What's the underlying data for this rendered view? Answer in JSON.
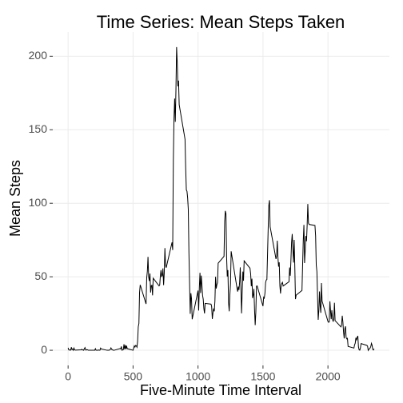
{
  "chart_data": {
    "type": "line",
    "title": "Time Series: Mean Steps Taken",
    "x_label": "Five-Minute Time Interval",
    "y_label": "Mean Steps",
    "color": "#000000",
    "grid": true,
    "xlim": [
      -118,
      2473
    ],
    "xticks": [
      0,
      500,
      1000,
      1500,
      2000
    ],
    "ylim": [
      -10.3,
      216.5
    ],
    "yticks": [
      0,
      50,
      100,
      150,
      200
    ],
    "x": [
      0,
      5,
      10,
      15,
      20,
      25,
      30,
      35,
      40,
      45,
      50,
      55,
      100,
      105,
      110,
      115,
      120,
      125,
      130,
      135,
      140,
      145,
      150,
      155,
      200,
      205,
      210,
      215,
      220,
      225,
      230,
      235,
      240,
      245,
      250,
      255,
      300,
      305,
      310,
      315,
      320,
      325,
      330,
      335,
      340,
      345,
      350,
      355,
      400,
      405,
      410,
      415,
      420,
      425,
      430,
      435,
      440,
      445,
      450,
      455,
      500,
      505,
      510,
      515,
      520,
      525,
      530,
      535,
      540,
      545,
      550,
      555,
      600,
      605,
      610,
      615,
      620,
      625,
      630,
      635,
      640,
      645,
      650,
      655,
      700,
      705,
      710,
      715,
      720,
      725,
      730,
      735,
      740,
      745,
      750,
      755,
      800,
      805,
      810,
      815,
      820,
      825,
      830,
      835,
      840,
      845,
      850,
      855,
      900,
      905,
      910,
      915,
      920,
      925,
      930,
      935,
      940,
      945,
      950,
      955,
      1000,
      1005,
      1010,
      1015,
      1020,
      1025,
      1030,
      1035,
      1040,
      1045,
      1050,
      1055,
      1100,
      1105,
      1110,
      1115,
      1120,
      1125,
      1130,
      1135,
      1140,
      1145,
      1150,
      1155,
      1200,
      1205,
      1210,
      1215,
      1220,
      1225,
      1230,
      1235,
      1240,
      1245,
      1250,
      1255,
      1300,
      1305,
      1310,
      1315,
      1320,
      1325,
      1330,
      1335,
      1340,
      1345,
      1350,
      1355,
      1400,
      1405,
      1410,
      1415,
      1420,
      1425,
      1430,
      1435,
      1440,
      1445,
      1450,
      1455,
      1500,
      1505,
      1510,
      1515,
      1520,
      1525,
      1530,
      1535,
      1540,
      1545,
      1550,
      1555,
      1600,
      1605,
      1610,
      1615,
      1620,
      1625,
      1630,
      1635,
      1640,
      1645,
      1650,
      1655,
      1700,
      1705,
      1710,
      1715,
      1720,
      1725,
      1730,
      1735,
      1740,
      1745,
      1750,
      1755,
      1800,
      1805,
      1810,
      1815,
      1820,
      1825,
      1830,
      1835,
      1840,
      1845,
      1850,
      1855,
      1900,
      1905,
      1910,
      1915,
      1920,
      1925,
      1930,
      1935,
      1940,
      1945,
      1950,
      1955,
      2000,
      2005,
      2010,
      2015,
      2020,
      2025,
      2030,
      2035,
      2040,
      2045,
      2050,
      2055,
      2100,
      2105,
      2110,
      2115,
      2120,
      2125,
      2130,
      2135,
      2140,
      2145,
      2150,
      2155,
      2200,
      2205,
      2210,
      2215,
      2220,
      2225,
      2230,
      2235,
      2240,
      2245,
      2250,
      2255,
      2300,
      2305,
      2310,
      2315,
      2320,
      2325,
      2330,
      2335,
      2340,
      2345,
      2350,
      2355
    ],
    "values": [
      1.7,
      0.3,
      0.1,
      0.2,
      0.1,
      2.1,
      0.5,
      0.9,
      0,
      1.5,
      0.3,
      0.1,
      0.3,
      0.7,
      0.2,
      0.3,
      0,
      1.1,
      1.8,
      0.2,
      0.2,
      0.4,
      0.3,
      0,
      0,
      0,
      1.1,
      0,
      0,
      0.1,
      0,
      0.2,
      0,
      0,
      1.5,
      0.9,
      0,
      0,
      0,
      0,
      0.2,
      0.6,
      1.6,
      0.6,
      0.5,
      0.1,
      0,
      0,
      1.2,
      0.9,
      2.6,
      0,
      0.3,
      0.4,
      4.1,
      0.7,
      3.5,
      0.8,
      3.1,
      1.1,
      0,
      1.6,
      3,
      2.2,
      3.3,
      3,
      2.1,
      6.1,
      16,
      18.3,
      39.5,
      44.5,
      31.5,
      49.3,
      53.8,
      63.5,
      50,
      47.1,
      52.2,
      39.3,
      44,
      44.2,
      37.4,
      49,
      43.8,
      44.4,
      50.5,
      54.5,
      49.9,
      51,
      55.7,
      44.3,
      52.3,
      69.5,
      57.8,
      56.2,
      73.4,
      68.2,
      129.4,
      157.5,
      171.2,
      155.4,
      177.3,
      206.2,
      195.9,
      179.6,
      183.4,
      167,
      143.5,
      124,
      109.1,
      108.1,
      103.7,
      96,
      66.2,
      45.2,
      24.8,
      38.8,
      35,
      21.1,
      40.6,
      27,
      42.4,
      52.7,
      38.9,
      50.8,
      44.3,
      37.4,
      34.7,
      28.3,
      25.1,
      31.9,
      31.4,
      29.7,
      21.3,
      25.5,
      28.4,
      26.5,
      33.4,
      50,
      42,
      44.6,
      46,
      59.2,
      63.9,
      87.7,
      94.8,
      92.8,
      63.4,
      50.2,
      54.5,
      32.4,
      26.5,
      37.7,
      45.1,
      67.3,
      42.3,
      39.9,
      43.3,
      41,
      46.2,
      56.4,
      42.8,
      25.1,
      40,
      53.5,
      47.3,
      60.8,
      55.8,
      52,
      43.6,
      48.7,
      35.5,
      37.5,
      41.8,
      27.5,
      17.1,
      26.1,
      43.6,
      43.8,
      30,
      36.1,
      35.5,
      38.8,
      46,
      47.8,
      48.1,
      65.3,
      82.9,
      98.7,
      102.1,
      84,
      62.1,
      64.1,
      74.5,
      63.2,
      56.9,
      59.8,
      43.9,
      38.6,
      44.7,
      45.5,
      46.2,
      43.7,
      46.6,
      56.3,
      50.7,
      61.2,
      73.4,
      79.1,
      68.9,
      59.7,
      75.1,
      56.5,
      34.8,
      37.5,
      40.7,
      58,
      74.7,
      85.3,
      59.3,
      67.8,
      77.7,
      74.2,
      85.3,
      99.5,
      86.6,
      85.6,
      84.9,
      77.8,
      58,
      53.4,
      36.3,
      20.7,
      27.4,
      40,
      30.2,
      25.5,
      45.7,
      33.5,
      19.6,
      19,
      19.3,
      33.3,
      26.8,
      21.2,
      27.3,
      21.3,
      19.5,
      21.3,
      32.3,
      20.2,
      15.9,
      17.2,
      23.5,
      19.2,
      12.5,
      8.1,
      14.7,
      16.3,
      8.7,
      7.8,
      8.1,
      2.6,
      1.5,
      3.7,
      4.8,
      8.5,
      7.1,
      8.7,
      9.8,
      2.2,
      0.3,
      0.1,
      1.6,
      4.6,
      3.3,
      2.8,
      0,
      0.8,
      1,
      1.6,
      2.6,
      4.7,
      3.3,
      0.6,
      0.2,
      1.1
    ]
  }
}
